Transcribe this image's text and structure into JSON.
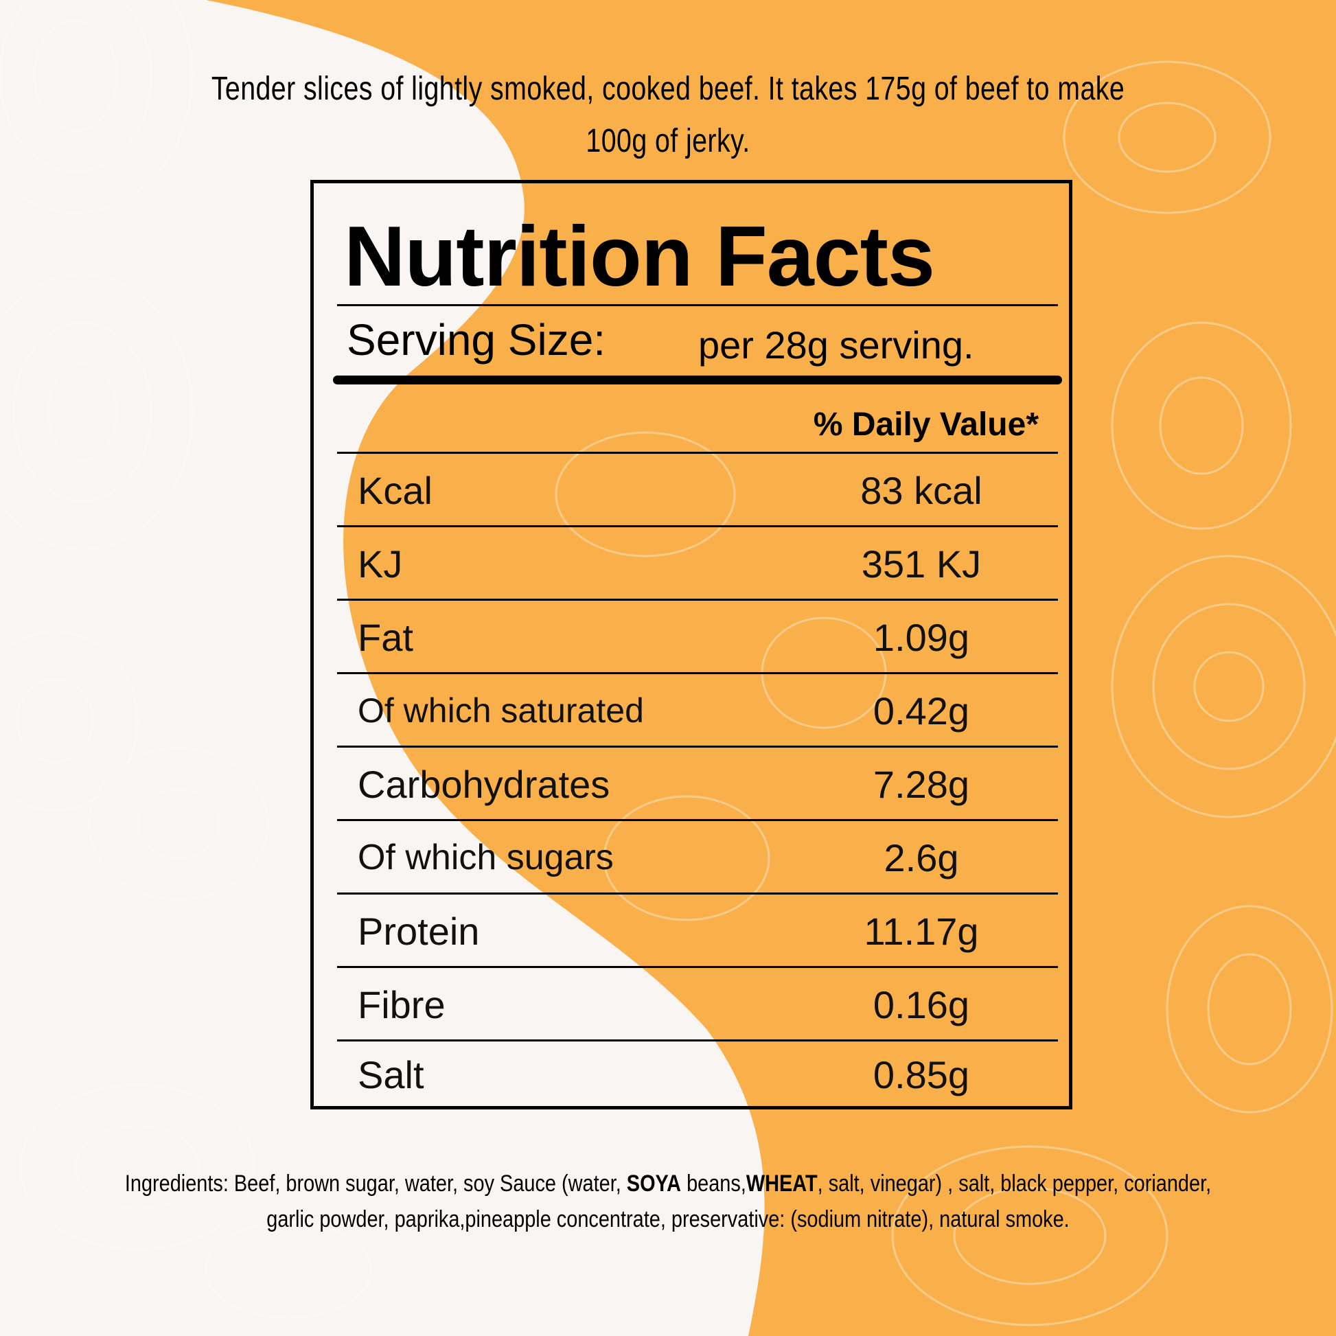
{
  "colors": {
    "background": "#f8f5f3",
    "accent": "#f9b04b",
    "contour": "#ffffff"
  },
  "intro_text": "Tender slices of lightly smoked, cooked beef. It takes 175g of beef to make 100g of jerky.",
  "label": {
    "title": "Nutrition Facts",
    "serving_label": "Serving Size:",
    "serving_value": "per 28g serving.",
    "daily_value_header": "% Daily Value*",
    "rows": [
      {
        "name": "Kcal",
        "value": "83 kcal"
      },
      {
        "name": "KJ",
        "value": "351 KJ"
      },
      {
        "name": "Fat",
        "value": "1.09g"
      },
      {
        "name": "Of which saturated",
        "value": "0.42g"
      },
      {
        "name": "Carbohydrates",
        "value": "7.28g"
      },
      {
        "name": "Of which sugars",
        "value": "2.6g"
      },
      {
        "name": "Protein",
        "value": "11.17g"
      },
      {
        "name": "Fibre",
        "value": "0.16g"
      },
      {
        "name": "Salt",
        "value": "0.85g"
      }
    ]
  },
  "ingredients": {
    "part1": "Ingredients: Beef, brown sugar, water, soy Sauce (water, ",
    "allergen1": "SOYA",
    "part2": " beans,",
    "allergen2": "WHEAT",
    "part3": ", salt, vinegar) , salt, black pepper, coriander, garlic powder, paprika,pineapple concentrate, preservative: (sodium nitrate), natural smoke."
  }
}
